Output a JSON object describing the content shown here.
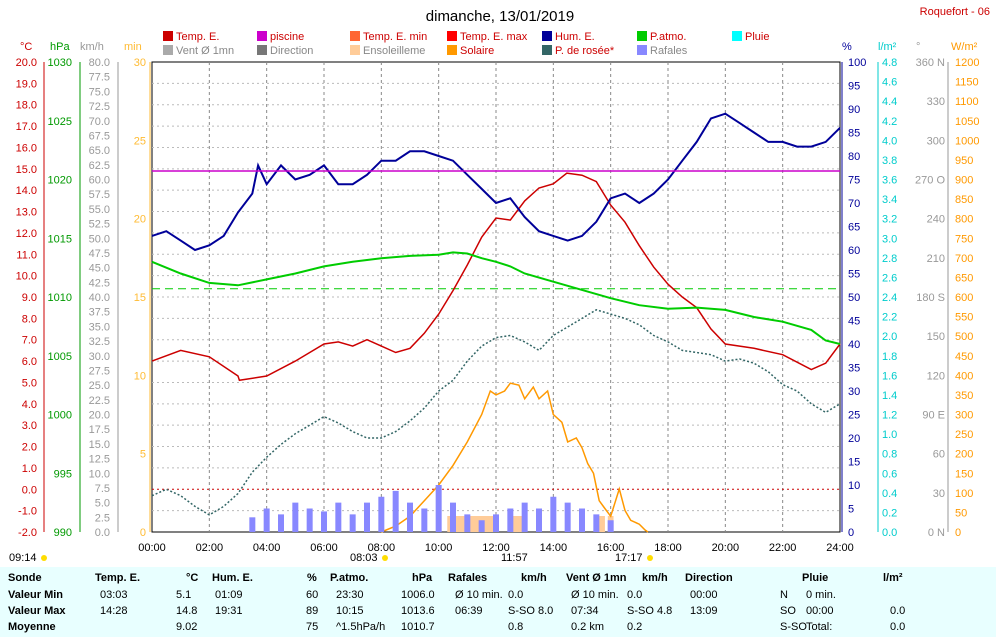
{
  "header": {
    "title": "dimanche, 13/01/2019",
    "station": "Roquefort - 06"
  },
  "legend": {
    "items": [
      {
        "label": "Temp. E.",
        "color": "#cc0000"
      },
      {
        "label": "piscine",
        "color": "#cc00cc"
      },
      {
        "label": "Temp. E. min",
        "color": "#ff6633"
      },
      {
        "label": "Temp. E. max",
        "color": "#ff0000"
      },
      {
        "label": "Hum. E.",
        "color": "#000099"
      },
      {
        "label": "P.atmo.",
        "color": "#00cc00"
      },
      {
        "label": "Pluie",
        "color": "#00ffff"
      },
      {
        "label": "Vent Ø 1mn",
        "color": "#aaaaaa"
      },
      {
        "label": "Direction",
        "color": "#777777"
      },
      {
        "label": "Ensoleilleme",
        "color": "#ffcc99"
      },
      {
        "label": "Solaire",
        "color": "#ff9900"
      },
      {
        "label": "P. de rosée*",
        "color": "#336666"
      },
      {
        "label": "Rafales",
        "color": "#8888ff"
      }
    ]
  },
  "axis_units": {
    "temp": "°C",
    "hpa": "hPa",
    "kmh": "km/h",
    "min": "min",
    "pct": "%",
    "lm2": "l/m²",
    "deg": "°",
    "wm2": "W/m²"
  },
  "axis_ticks": {
    "temp": [
      "20.0",
      "19.0",
      "18.0",
      "17.0",
      "16.0",
      "15.0",
      "14.0",
      "13.0",
      "12.0",
      "11.0",
      "10.0",
      "9.0",
      "8.0",
      "7.0",
      "6.0",
      "5.0",
      "4.0",
      "3.0",
      "2.0",
      "1.0",
      "0.0",
      "-1.0",
      "-2.0"
    ],
    "hpa": [
      "1030",
      "1025",
      "1020",
      "1015",
      "1010",
      "1005",
      "1000",
      "995",
      "990"
    ],
    "kmh": [
      "80.0",
      "77.5",
      "75.0",
      "72.5",
      "70.0",
      "67.5",
      "65.0",
      "62.5",
      "60.0",
      "57.5",
      "55.0",
      "52.5",
      "50.0",
      "47.5",
      "45.0",
      "42.5",
      "40.0",
      "37.5",
      "35.0",
      "32.5",
      "30.0",
      "27.5",
      "25.0",
      "22.5",
      "20.0",
      "17.5",
      "15.0",
      "12.5",
      "10.0",
      "7.5",
      "5.0",
      "2.5",
      "0.0"
    ],
    "min": [
      "30",
      "25",
      "20",
      "15",
      "10",
      "5",
      "0"
    ],
    "pct": [
      "100",
      "95",
      "90",
      "85",
      "80",
      "75",
      "70",
      "65",
      "60",
      "55",
      "50",
      "45",
      "40",
      "35",
      "30",
      "25",
      "20",
      "15",
      "10",
      "5",
      "0"
    ],
    "rain": [
      "4.8",
      "4.6",
      "4.4",
      "4.2",
      "4.0",
      "3.8",
      "3.6",
      "3.4",
      "3.2",
      "3.0",
      "2.8",
      "2.6",
      "2.4",
      "2.2",
      "2.0",
      "1.8",
      "1.6",
      "1.4",
      "1.2",
      "1.0",
      "0.8",
      "0.6",
      "0.4",
      "0.2",
      "0.0"
    ],
    "deg": [
      "360 N",
      "330",
      "300",
      "270 O",
      "240",
      "210",
      "180 S",
      "150",
      "120",
      "90 E",
      "60",
      "30",
      "0 N"
    ],
    "wm2": [
      "1200",
      "1150",
      "1100",
      "1050",
      "1000",
      "950",
      "900",
      "850",
      "800",
      "750",
      "700",
      "650",
      "600",
      "550",
      "500",
      "450",
      "400",
      "350",
      "300",
      "250",
      "200",
      "150",
      "100",
      "50",
      "0"
    ],
    "time": [
      "00:00",
      "02:00",
      "04:00",
      "06:00",
      "08:00",
      "10:00",
      "12:00",
      "14:00",
      "16:00",
      "18:00",
      "20:00",
      "22:00",
      "24:00"
    ]
  },
  "events": {
    "sunrise": "08:03",
    "noon": "11:57",
    "sunset": "17:17",
    "daylight_start": "09:14"
  },
  "chart_data": {
    "type": "line",
    "title": "dimanche, 13/01/2019",
    "x_unit": "hours",
    "xlim": [
      0,
      24
    ],
    "series": [
      {
        "name": "Temp. E.",
        "unit": "°C",
        "color": "#cc0000",
        "ylim": [
          -2,
          20
        ],
        "x": [
          0,
          1,
          2,
          3,
          3.05,
          4,
          5,
          6,
          6.5,
          7,
          7.5,
          8,
          8.5,
          9,
          9.5,
          10,
          10.5,
          11,
          11.5,
          12,
          12.5,
          13,
          13.5,
          14,
          14.47,
          15,
          15.5,
          16,
          16.5,
          17,
          17.5,
          18,
          18.5,
          19,
          19.5,
          20,
          21,
          22,
          23,
          23.5,
          24
        ],
        "y": [
          6.0,
          6.5,
          6.2,
          5.3,
          5.1,
          5.3,
          6.0,
          6.8,
          6.9,
          6.7,
          7.0,
          6.7,
          6.4,
          6.6,
          7.3,
          8.2,
          9.3,
          10.5,
          11.8,
          12.7,
          12.6,
          13.5,
          14.1,
          14.3,
          14.8,
          14.7,
          14.4,
          13.3,
          12.5,
          11.4,
          10.4,
          9.6,
          9.0,
          8.5,
          7.5,
          6.8,
          6.6,
          6.3,
          5.6,
          5.9,
          6.8
        ]
      },
      {
        "name": "Hum. E.",
        "unit": "%",
        "color": "#000099",
        "ylim": [
          0,
          100
        ],
        "x": [
          0,
          0.5,
          1,
          1.5,
          2,
          2.5,
          3,
          3.5,
          3.7,
          4,
          4.5,
          5,
          5.5,
          6,
          6.5,
          7,
          7.5,
          8,
          8.5,
          9,
          9.5,
          10,
          10.5,
          11,
          11.5,
          12,
          12.5,
          13,
          13.5,
          14,
          14.5,
          15,
          15.5,
          16,
          16.5,
          17,
          17.5,
          18,
          18.5,
          19,
          19.5,
          20,
          20.5,
          21,
          21.5,
          22,
          22.5,
          23,
          23.5,
          24
        ],
        "y": [
          63,
          64,
          62,
          60,
          61,
          63,
          68,
          72,
          78,
          74,
          78,
          75,
          76,
          78,
          74,
          74,
          76,
          79,
          79,
          81,
          81,
          80,
          79,
          76,
          73,
          70,
          71,
          67,
          64,
          63,
          62,
          63,
          66,
          71,
          72,
          70,
          72,
          75,
          79,
          83,
          88,
          89,
          87,
          85,
          83,
          83,
          82,
          82,
          83,
          86
        ]
      },
      {
        "name": "P.atmo.",
        "unit": "hPa",
        "color": "#00cc00",
        "ylim": [
          990,
          1030
        ],
        "x": [
          0,
          1,
          2,
          3,
          4,
          5,
          6,
          7,
          8,
          9,
          10,
          10.5,
          11,
          11.5,
          12,
          12.5,
          13,
          14,
          15,
          16,
          17,
          18,
          19,
          20,
          21,
          22,
          23,
          23.5,
          24
        ],
        "y": [
          1013.0,
          1012.0,
          1011.2,
          1011.0,
          1011.5,
          1012.0,
          1012.6,
          1013.0,
          1013.3,
          1013.5,
          1013.6,
          1013.8,
          1013.7,
          1013.3,
          1013.0,
          1012.6,
          1012.0,
          1011.3,
          1010.6,
          1009.9,
          1009.3,
          1009.0,
          1009.1,
          1008.9,
          1008.3,
          1007.9,
          1007.2,
          1006.3,
          1006.0
        ]
      },
      {
        "name": "P. de rosée*",
        "unit": "°C",
        "color": "#336666",
        "ylim": [
          -2,
          20
        ],
        "x": [
          0,
          0.5,
          1,
          1.5,
          2,
          2.5,
          3,
          3.5,
          4,
          4.5,
          5,
          5.5,
          6,
          6.5,
          7,
          7.5,
          8,
          8.5,
          9,
          9.5,
          10,
          10.5,
          11,
          11.5,
          12,
          12.5,
          13,
          13.5,
          14,
          14.5,
          15,
          15.5,
          16,
          16.5,
          17,
          17.5,
          18,
          18.5,
          19,
          19.5,
          20,
          20.5,
          21,
          21.5,
          22,
          22.5,
          23,
          23.5,
          24
        ],
        "y": [
          -0.3,
          0.0,
          -0.3,
          -0.8,
          -1.2,
          -0.8,
          -0.2,
          0.8,
          1.5,
          2.1,
          2.6,
          3.0,
          3.4,
          3.1,
          2.7,
          2.4,
          2.4,
          2.7,
          3.2,
          3.8,
          4.6,
          5.1,
          6.0,
          6.7,
          7.1,
          7.2,
          6.9,
          6.5,
          7.2,
          7.6,
          8.0,
          8.4,
          8.2,
          8.0,
          7.7,
          7.2,
          6.9,
          6.5,
          6.4,
          6.3,
          6.0,
          6.1,
          5.9,
          5.5,
          4.9,
          4.6,
          4.0,
          3.6,
          4.0
        ]
      },
      {
        "name": "Solaire",
        "unit": "W/m²",
        "color": "#ff9900",
        "ylim": [
          0,
          1200
        ],
        "x": [
          8.0,
          8.5,
          9,
          9.5,
          10,
          10.5,
          11,
          11.5,
          11.8,
          12,
          12.3,
          12.5,
          12.8,
          13,
          13.3,
          13.5,
          13.8,
          14,
          14.3,
          14.5,
          14.8,
          15,
          15.2,
          15.4,
          15.6,
          15.8,
          16,
          16.3,
          16.5,
          16.7,
          17,
          17.2,
          17.3
        ],
        "y": [
          0,
          15,
          40,
          80,
          120,
          170,
          230,
          300,
          360,
          350,
          360,
          380,
          375,
          340,
          370,
          340,
          360,
          300,
          280,
          230,
          240,
          215,
          175,
          150,
          80,
          60,
          40,
          110,
          55,
          30,
          20,
          5,
          0
        ]
      },
      {
        "name": "Rafales",
        "unit": "km/h",
        "color": "#8888ff",
        "ylim": [
          0,
          80
        ],
        "x": [
          0,
          3.5,
          4,
          4.5,
          5,
          5.5,
          6,
          6.5,
          7,
          7.5,
          8,
          8.5,
          9,
          9.5,
          10,
          10.5,
          11,
          11.5,
          12,
          12.5,
          13,
          13.5,
          14,
          14.5,
          15,
          15.5,
          16,
          24
        ],
        "y": [
          0,
          2.5,
          4,
          3,
          5,
          4,
          3.5,
          5,
          3,
          5,
          6,
          7,
          5,
          4,
          8,
          5,
          3,
          2,
          3,
          4,
          5,
          4,
          6,
          5,
          4,
          3,
          2,
          0
        ]
      },
      {
        "name": "piscine",
        "unit": "°C",
        "color": "#cc00cc",
        "ylim": [
          -2,
          20
        ],
        "x": [
          0,
          24
        ],
        "y": [
          14.9,
          14.9
        ]
      }
    ],
    "reference_lines": [
      {
        "name": "P.atmo. moyenne",
        "value": 1010.7,
        "unit": "hPa",
        "color": "#00cc00",
        "style": "dashed"
      }
    ],
    "sunshine_minutes_blocks_hours": [
      [
        10.3,
        12.1
      ],
      [
        12.5,
        13.0
      ],
      [
        15.5,
        15.8
      ],
      [
        15.9,
        16.1
      ]
    ]
  },
  "summary": {
    "headers": [
      "Sonde",
      "Temp. E.",
      "°C",
      "Hum. E.",
      "%",
      "P.atmo.",
      "hPa",
      "Rafales",
      "km/h",
      "Vent Ø 1mn",
      "km/h",
      "Direction",
      "Pluie",
      "l/m²"
    ],
    "rows": [
      {
        "label": "Valeur Min",
        "temp_t": "03:03",
        "temp_v": "5.1",
        "hum_t": "01:09",
        "hum_v": "60",
        "p_t": "23:30",
        "p_v": "1006.0",
        "raf_t": "Ø 10 min.",
        "raf_v": "0.0",
        "vent_t": "Ø 10 min.",
        "vent_v": "0.0",
        "dir_t": "00:00",
        "dir_v": "N",
        "pluie_t": "0 min.",
        "pluie_v": ""
      },
      {
        "label": "Valeur Max",
        "temp_t": "14:28",
        "temp_v": "14.8",
        "hum_t": "19:31",
        "hum_v": "89",
        "p_t": "10:15",
        "p_v": "1013.6",
        "raf_t": "06:39",
        "raf_v": "S-SO 8.0",
        "vent_t": "07:34",
        "vent_v": "S-SO 4.8",
        "dir_t": "13:09",
        "dir_v": "SO",
        "pluie_t": "00:00",
        "pluie_v": "0.0"
      },
      {
        "label": "Moyenne",
        "temp_t": "",
        "temp_v": "9.02",
        "hum_t": "",
        "hum_v": "75",
        "p_t": "^1.5hPa/h",
        "p_v": "1010.7",
        "raf_t": "",
        "raf_v": "0.8",
        "vent_t": "0.2 km",
        "vent_v": "0.2",
        "dir_t": "",
        "dir_v": "S-SO",
        "pluie_t": "Total:",
        "pluie_v": "0.0"
      }
    ]
  }
}
